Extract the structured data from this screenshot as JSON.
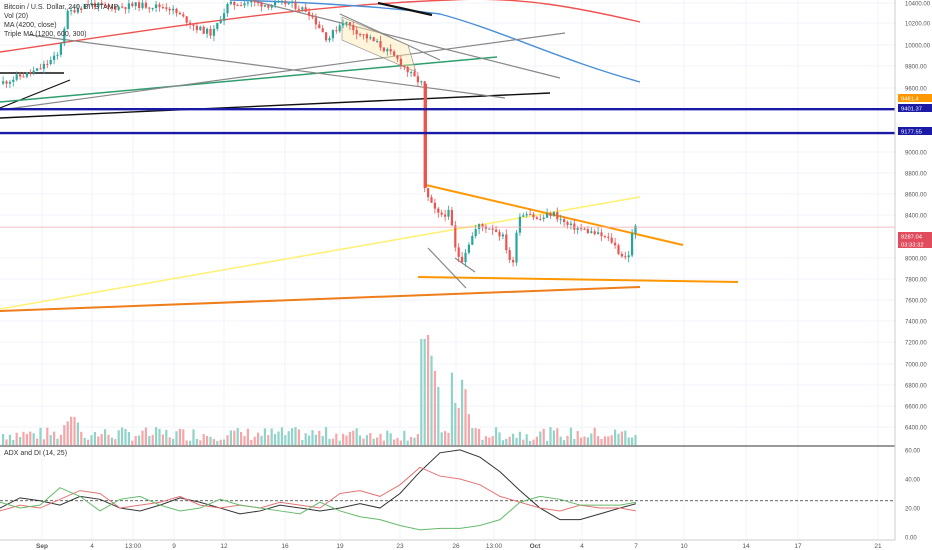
{
  "header": {
    "symbol_line": "Bitcoin / U.S. Dollar, 240, BITSTAMP",
    "vol_line": "Vol (20)",
    "ma_line": "MA (4200, close)",
    "triple_ma_line": "Triple MA (1200, 600, 300)",
    "adx_line": "ADX and DI (14, 25)"
  },
  "chart_data": {
    "type": "candlestick",
    "instrument": "Bitcoin / U.S. Dollar",
    "interval": "240",
    "exchange": "BITSTAMP",
    "x_ticks": [
      "Sep",
      "4",
      "13:00",
      "9",
      "12",
      "16",
      "19",
      "23",
      "26",
      "13:00",
      "Oct",
      "4",
      "7",
      "10",
      "14",
      "17",
      "21"
    ],
    "price_ticks": [
      "10400.00",
      "10200.00",
      "10000.00",
      "9800.00",
      "9600.00",
      "9000.00",
      "8800.00",
      "8600.00",
      "8400.00",
      "8000.00",
      "7800.00",
      "7600.00",
      "7400.00",
      "7200.00",
      "7000.00",
      "6800.00",
      "6600.00",
      "6400.00"
    ],
    "price_range": [
      6320,
      10430
    ],
    "price_labels": [
      {
        "text": "9461.4",
        "color": "#ff9800"
      },
      {
        "text": "9401.37",
        "color": "#1a1aa6"
      },
      {
        "text": "9177.55",
        "color": "#1a1aa6"
      },
      {
        "text": "8287.04",
        "color": "#e04c5c"
      },
      {
        "text": "03:33:32",
        "color": "#e04c5c"
      }
    ],
    "horizontal_levels": [
      {
        "price": 9401.37,
        "color": "#1a1aa6"
      },
      {
        "price": 9177.55,
        "color": "#1a1aa6"
      }
    ],
    "current_price": 8287.04,
    "adx_ticks": [
      "60.00",
      "40.00",
      "20.00",
      "0.00"
    ],
    "adx_range": [
      -2,
      62
    ],
    "adx_threshold": 25,
    "adx_series": [
      {
        "color": "#333333",
        "points": [
          [
            0,
            20
          ],
          [
            20,
            27
          ],
          [
            40,
            25
          ],
          [
            60,
            22
          ],
          [
            80,
            28
          ],
          [
            100,
            26
          ],
          [
            120,
            20
          ],
          [
            140,
            18
          ],
          [
            160,
            22
          ],
          [
            180,
            27
          ],
          [
            200,
            24
          ],
          [
            220,
            20
          ],
          [
            240,
            16
          ],
          [
            260,
            18
          ],
          [
            280,
            22
          ],
          [
            300,
            20
          ],
          [
            320,
            18
          ],
          [
            340,
            20
          ],
          [
            360,
            23
          ],
          [
            380,
            20
          ],
          [
            400,
            30
          ],
          [
            420,
            45
          ],
          [
            440,
            58
          ],
          [
            460,
            60
          ],
          [
            480,
            55
          ],
          [
            500,
            45
          ],
          [
            520,
            32
          ],
          [
            540,
            20
          ],
          [
            560,
            12
          ],
          [
            580,
            12
          ],
          [
            600,
            16
          ],
          [
            620,
            20
          ],
          [
            636,
            23
          ]
        ]
      },
      {
        "color": "#e57373",
        "points": [
          [
            0,
            18
          ],
          [
            20,
            22
          ],
          [
            40,
            20
          ],
          [
            60,
            26
          ],
          [
            80,
            32
          ],
          [
            100,
            30
          ],
          [
            120,
            20
          ],
          [
            140,
            22
          ],
          [
            160,
            24
          ],
          [
            180,
            28
          ],
          [
            200,
            22
          ],
          [
            220,
            20
          ],
          [
            240,
            22
          ],
          [
            260,
            20
          ],
          [
            280,
            24
          ],
          [
            300,
            22
          ],
          [
            320,
            20
          ],
          [
            340,
            30
          ],
          [
            360,
            32
          ],
          [
            380,
            28
          ],
          [
            400,
            36
          ],
          [
            420,
            48
          ],
          [
            440,
            42
          ],
          [
            460,
            40
          ],
          [
            480,
            36
          ],
          [
            500,
            28
          ],
          [
            520,
            24
          ],
          [
            540,
            20
          ],
          [
            560,
            18
          ],
          [
            580,
            22
          ],
          [
            600,
            20
          ],
          [
            620,
            20
          ],
          [
            636,
            18
          ]
        ]
      },
      {
        "color": "#66bb6a",
        "points": [
          [
            0,
            24
          ],
          [
            20,
            20
          ],
          [
            40,
            22
          ],
          [
            60,
            34
          ],
          [
            80,
            28
          ],
          [
            100,
            18
          ],
          [
            120,
            26
          ],
          [
            140,
            28
          ],
          [
            160,
            22
          ],
          [
            180,
            18
          ],
          [
            200,
            20
          ],
          [
            220,
            26
          ],
          [
            240,
            22
          ],
          [
            260,
            20
          ],
          [
            280,
            18
          ],
          [
            300,
            16
          ],
          [
            320,
            24
          ],
          [
            340,
            18
          ],
          [
            360,
            14
          ],
          [
            380,
            12
          ],
          [
            400,
            8
          ],
          [
            420,
            5
          ],
          [
            440,
            6
          ],
          [
            460,
            6
          ],
          [
            480,
            8
          ],
          [
            500,
            12
          ],
          [
            520,
            24
          ],
          [
            540,
            28
          ],
          [
            560,
            26
          ],
          [
            580,
            22
          ],
          [
            600,
            22
          ],
          [
            620,
            22
          ],
          [
            636,
            24
          ]
        ]
      }
    ]
  }
}
